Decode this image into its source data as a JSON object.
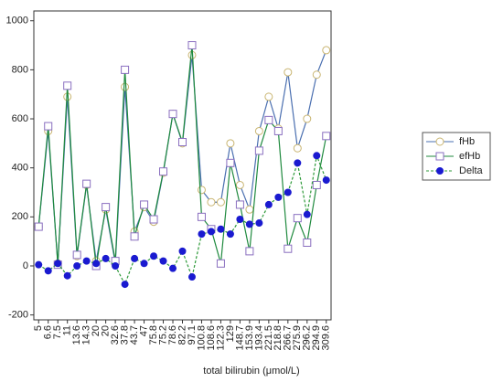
{
  "chart_data": {
    "type": "line",
    "x_label": "total bilirubin (μmol/L)",
    "categories": [
      "5",
      "6.6",
      "7.5",
      "11",
      "13.6",
      "14.3",
      "20",
      "20",
      "32.6",
      "37.8",
      "43.7",
      "47",
      "75.8",
      "75.2",
      "78.6",
      "82.2",
      "97.1",
      "100.8",
      "108.6",
      "122.3",
      "129",
      "148.7",
      "153.9",
      "193.4",
      "221.5",
      "218.8",
      "266.7",
      "275.9",
      "296.2",
      "294.9",
      "309.6"
    ],
    "series": [
      {
        "name": "fHb",
        "color": "#4a6fb0",
        "marker_color": "#c9b571",
        "marker": "circle",
        "dashed": false,
        "values": [
          160,
          550,
          10,
          690,
          40,
          330,
          20,
          230,
          10,
          730,
          140,
          240,
          180,
          380,
          620,
          500,
          860,
          310,
          260,
          260,
          500,
          330,
          230,
          550,
          690,
          560,
          790,
          480,
          600,
          780,
          880
        ]
      },
      {
        "name": "efHb",
        "color": "#1f8a3e",
        "marker_color": "#8a6fc0",
        "marker": "square",
        "dashed": false,
        "values": [
          160,
          570,
          5,
          735,
          45,
          335,
          0,
          240,
          20,
          800,
          120,
          250,
          190,
          385,
          620,
          505,
          900,
          200,
          150,
          10,
          420,
          250,
          60,
          470,
          595,
          550,
          70,
          195,
          95,
          330,
          530
        ]
      },
      {
        "name": "Delta",
        "color": "#2e9a3a",
        "marker_color": "#1a1ad0",
        "marker": "dot",
        "dashed": true,
        "values": [
          5,
          -20,
          10,
          -40,
          0,
          20,
          10,
          30,
          0,
          -75,
          30,
          10,
          40,
          20,
          -10,
          60,
          -45,
          130,
          140,
          150,
          130,
          190,
          170,
          175,
          250,
          280,
          300,
          420,
          210,
          450,
          350
        ]
      }
    ],
    "ylim": [
      -220,
      1040
    ],
    "yticks": [
      -200,
      0,
      200,
      400,
      600,
      800,
      1000
    ],
    "legend": "right"
  }
}
